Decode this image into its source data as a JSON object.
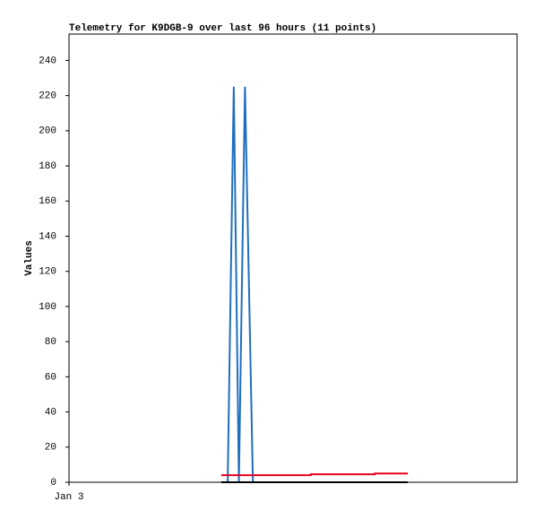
{
  "chart_data": {
    "type": "line",
    "title": "Telemetry for K9DGB-9 over last 96 hours (11 points)",
    "y_label": "Values",
    "xlim": [
      0,
      96
    ],
    "xticks": [
      {
        "value": 0,
        "label": "Jan 3"
      }
    ],
    "ylim": [
      0,
      255
    ],
    "yticks": [
      0,
      20,
      40,
      60,
      80,
      100,
      120,
      140,
      160,
      180,
      200,
      220,
      240
    ],
    "series": [
      {
        "color": "#1f6fc0",
        "x": [
          34.0,
          35.3,
          36.4,
          37.7,
          39.4
        ],
        "values": [
          0,
          225,
          0,
          225,
          0
        ]
      },
      {
        "color": "#000000",
        "x": [
          32.6,
          72.6
        ],
        "values": [
          0,
          0
        ]
      },
      {
        "color": "#e8001c",
        "x": [
          32.6,
          51.8,
          51.8,
          65.5,
          65.5,
          72.6
        ],
        "values": [
          4,
          4,
          4.5,
          4.5,
          5,
          5
        ]
      }
    ]
  }
}
